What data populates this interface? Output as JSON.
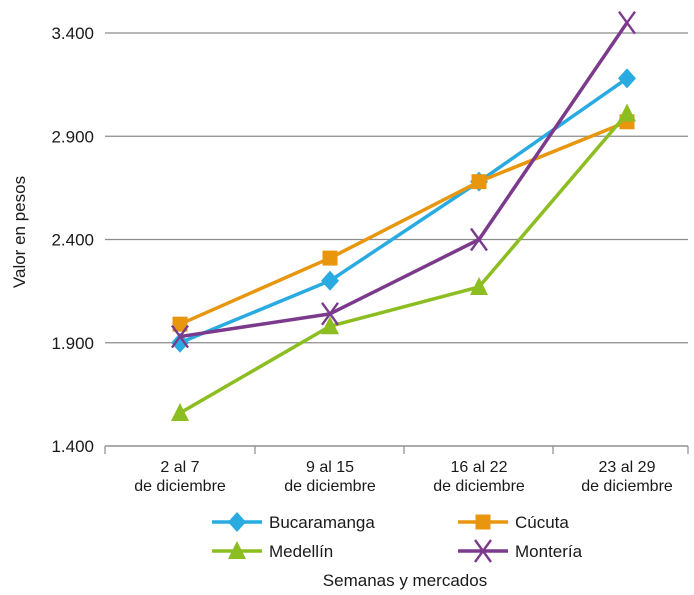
{
  "chart_data": {
    "type": "line",
    "title": "",
    "xlabel": "Semanas y mercados",
    "ylabel": "Valor en pesos",
    "categories": [
      [
        "2 al 7",
        "de diciembre"
      ],
      [
        "9 al 15",
        "de diciembre"
      ],
      [
        "16 al 22",
        "de diciembre"
      ],
      [
        "23 al 29",
        "de diciembre"
      ]
    ],
    "ylim": [
      1400,
      3400
    ],
    "yticks": [
      1400,
      1900,
      2400,
      2900,
      3400
    ],
    "ytick_labels": [
      "1.400",
      "1.900",
      "2.400",
      "2.900",
      "3.400"
    ],
    "grid": "horizontal",
    "legend_position": "bottom",
    "series": [
      {
        "name": "Bucaramanga",
        "values": [
          1900,
          2200,
          2680,
          3180
        ],
        "color": "#29abe2",
        "marker": "diamond"
      },
      {
        "name": "Cúcuta",
        "values": [
          1990,
          2310,
          2680,
          2970
        ],
        "color": "#e8960e",
        "marker": "square"
      },
      {
        "name": "Medellín",
        "values": [
          1560,
          1980,
          2170,
          3010
        ],
        "color": "#8cbe22",
        "marker": "triangle"
      },
      {
        "name": "Montería",
        "values": [
          1930,
          2040,
          2400,
          3450
        ],
        "color": "#7b3a8c",
        "marker": "x"
      }
    ]
  }
}
